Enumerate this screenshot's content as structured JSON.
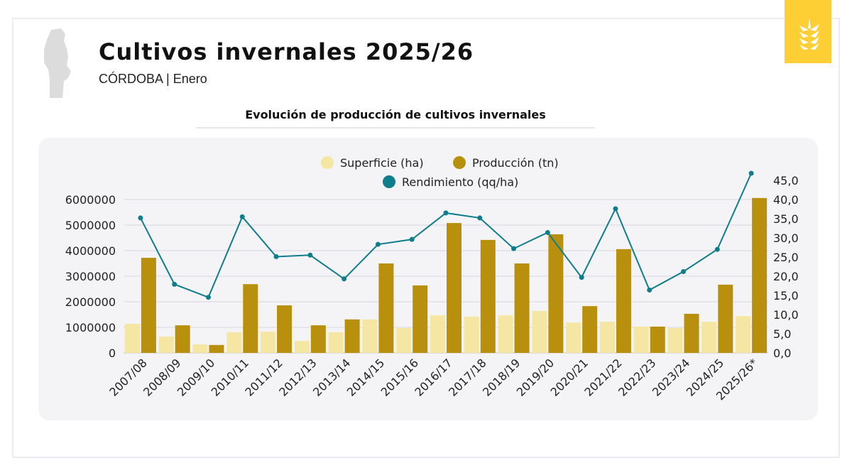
{
  "header": {
    "title": "Cultivos invernales 2025/26",
    "subtitle": "CÓRDOBA | Enero",
    "logo_icon": "wheat-icon",
    "map_icon": "cordoba-map-icon"
  },
  "colors": {
    "superficie": "#f5e6a3",
    "produccion": "#b8900d",
    "rendimiento": "#0f7d8c",
    "logo": "#fdcf35"
  },
  "chart_data": {
    "type": "bar+line",
    "title": "Evolución de producción de cultivos invernales",
    "categories": [
      "2007/08",
      "2008/09",
      "2009/10",
      "2010/11",
      "2011/12",
      "2012/13",
      "2013/14",
      "2014/15",
      "2015/16",
      "2016/17",
      "2017/18",
      "2018/19",
      "2019/20",
      "2020/21",
      "2021/22",
      "2022/23",
      "2023/24",
      "2024/25",
      "2025/26*"
    ],
    "series": [
      {
        "name": "Superficie (ha)",
        "type": "bar",
        "axis": "left",
        "values": [
          1140000,
          640000,
          330000,
          810000,
          830000,
          470000,
          810000,
          1310000,
          970000,
          1470000,
          1420000,
          1470000,
          1640000,
          1190000,
          1220000,
          1030000,
          970000,
          1220000,
          1440000
        ]
      },
      {
        "name": "Producción (tn)",
        "type": "bar",
        "axis": "left",
        "values": [
          3720000,
          1080000,
          310000,
          2690000,
          1860000,
          1080000,
          1310000,
          3500000,
          2640000,
          5080000,
          4420000,
          3500000,
          4640000,
          1830000,
          4060000,
          1030000,
          1530000,
          2670000,
          6060000
        ]
      },
      {
        "name": "Rendimiento (qq/ha)",
        "type": "line",
        "axis": "right",
        "values": [
          35.2,
          17.9,
          14.5,
          35.5,
          25.1,
          25.5,
          19.3,
          28.3,
          29.6,
          36.5,
          35.2,
          27.2,
          31.4,
          19.7,
          37.6,
          16.4,
          21.2,
          27.0,
          47.1
        ]
      }
    ],
    "left_axis": {
      "ticks": [
        "0",
        "1000000",
        "2000000",
        "3000000",
        "4000000",
        "5000000",
        "6000000"
      ],
      "range": [
        0,
        6000000
      ]
    },
    "right_axis": {
      "ticks": [
        "0,0",
        "5,0",
        "10,0",
        "15,0",
        "20,0",
        "25,0",
        "30,0",
        "35,0",
        "40,0",
        "45,0"
      ],
      "range": [
        0,
        45
      ]
    },
    "grid": true,
    "legend": "top"
  }
}
